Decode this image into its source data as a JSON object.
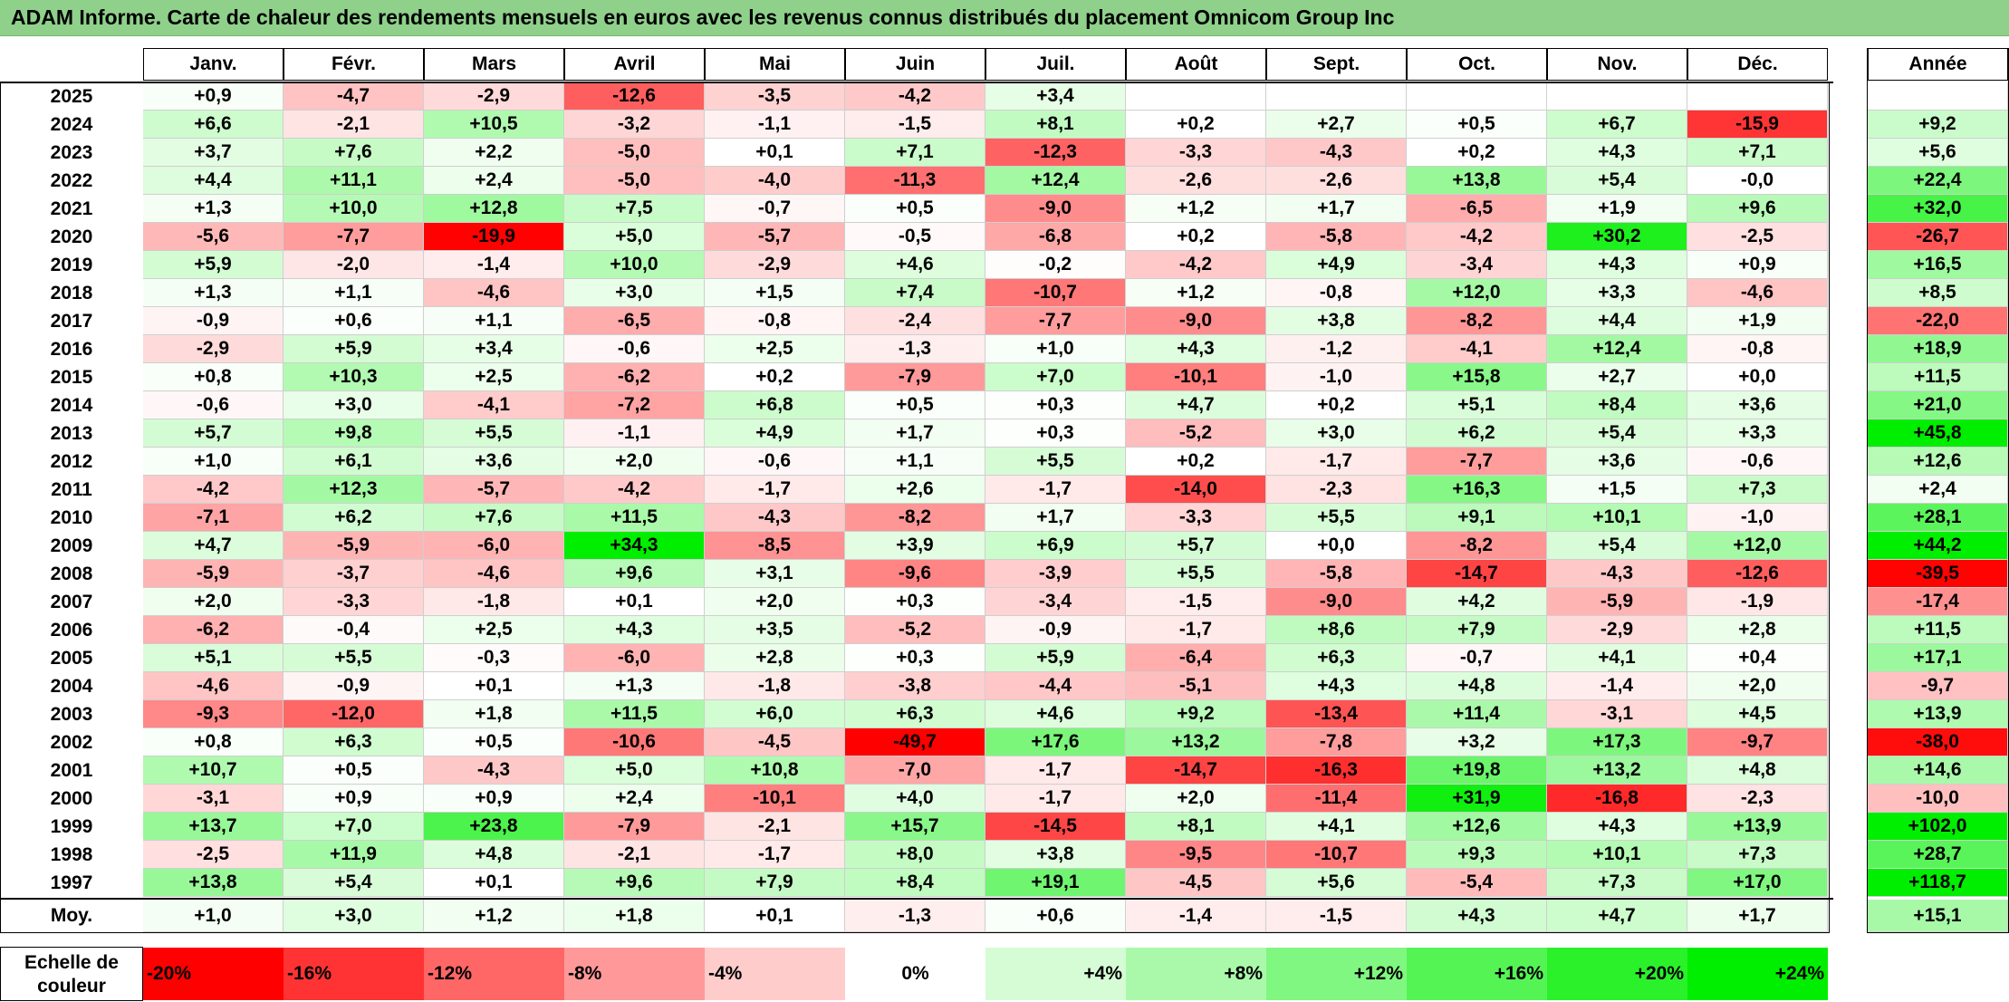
{
  "title": "ADAM Informe. Carte de chaleur des rendements mensuels en euros avec les revenus connus distribués du placement Omnicom Group Inc",
  "colors": {
    "title_bg": "#8fd18b",
    "neg_max": "#ff0000",
    "pos_max": "#00ee00",
    "neutral": "#ffffff"
  },
  "chart_data": {
    "type": "heatmap",
    "title": "ADAM Informe. Carte de chaleur des rendements mensuels en euros avec les revenus connus distribués du placement Omnicom Group Inc",
    "months": [
      "Janv.",
      "Févr.",
      "Mars",
      "Avril",
      "Mai",
      "Juin",
      "Juil.",
      "Août",
      "Sept.",
      "Oct.",
      "Nov.",
      "Déc."
    ],
    "annual_label": "Année",
    "avg_label": "Moy.",
    "rows": [
      {
        "year": "2025",
        "values": [
          "+0,9",
          "-4,7",
          "-2,9",
          "-12,6",
          "-3,5",
          "-4,2",
          "+3,4",
          "",
          "",
          "",
          "",
          ""
        ],
        "annual": ""
      },
      {
        "year": "2024",
        "values": [
          "+6,6",
          "-2,1",
          "+10,5",
          "-3,2",
          "-1,1",
          "-1,5",
          "+8,1",
          "+0,2",
          "+2,7",
          "+0,5",
          "+6,7",
          "-15,9"
        ],
        "annual": "+9,2"
      },
      {
        "year": "2023",
        "values": [
          "+3,7",
          "+7,6",
          "+2,2",
          "-5,0",
          "+0,1",
          "+7,1",
          "-12,3",
          "-3,3",
          "-4,3",
          "+0,2",
          "+4,3",
          "+7,1"
        ],
        "annual": "+5,6"
      },
      {
        "year": "2022",
        "values": [
          "+4,4",
          "+11,1",
          "+2,4",
          "-5,0",
          "-4,0",
          "-11,3",
          "+12,4",
          "-2,6",
          "-2,6",
          "+13,8",
          "+5,4",
          "-0,0"
        ],
        "annual": "+22,4"
      },
      {
        "year": "2021",
        "values": [
          "+1,3",
          "+10,0",
          "+12,8",
          "+7,5",
          "-0,7",
          "+0,5",
          "-9,0",
          "+1,2",
          "+1,7",
          "-6,5",
          "+1,9",
          "+9,6"
        ],
        "annual": "+32,0"
      },
      {
        "year": "2020",
        "values": [
          "-5,6",
          "-7,7",
          "-19,9",
          "+5,0",
          "-5,7",
          "-0,5",
          "-6,8",
          "+0,2",
          "-5,8",
          "-4,2",
          "+30,2",
          "-2,5"
        ],
        "annual": "-26,7"
      },
      {
        "year": "2019",
        "values": [
          "+5,9",
          "-2,0",
          "-1,4",
          "+10,0",
          "-2,9",
          "+4,6",
          "-0,2",
          "-4,2",
          "+4,9",
          "-3,4",
          "+4,3",
          "+0,9"
        ],
        "annual": "+16,5"
      },
      {
        "year": "2018",
        "values": [
          "+1,3",
          "+1,1",
          "-4,6",
          "+3,0",
          "+1,5",
          "+7,4",
          "-10,7",
          "+1,2",
          "-0,8",
          "+12,0",
          "+3,3",
          "-4,6"
        ],
        "annual": "+8,5"
      },
      {
        "year": "2017",
        "values": [
          "-0,9",
          "+0,6",
          "+1,1",
          "-6,5",
          "-0,8",
          "-2,4",
          "-7,7",
          "-9,0",
          "+3,8",
          "-8,2",
          "+4,4",
          "+1,9"
        ],
        "annual": "-22,0"
      },
      {
        "year": "2016",
        "values": [
          "-2,9",
          "+5,9",
          "+3,4",
          "-0,6",
          "+2,5",
          "-1,3",
          "+1,0",
          "+4,3",
          "-1,2",
          "-4,1",
          "+12,4",
          "-0,8"
        ],
        "annual": "+18,9"
      },
      {
        "year": "2015",
        "values": [
          "+0,8",
          "+10,3",
          "+2,5",
          "-6,2",
          "+0,2",
          "-7,9",
          "+7,0",
          "-10,1",
          "-1,0",
          "+15,8",
          "+2,7",
          "+0,0"
        ],
        "annual": "+11,5"
      },
      {
        "year": "2014",
        "values": [
          "-0,6",
          "+3,0",
          "-4,1",
          "-7,2",
          "+6,8",
          "+0,5",
          "+0,3",
          "+4,7",
          "+0,2",
          "+5,1",
          "+8,4",
          "+3,6"
        ],
        "annual": "+21,0"
      },
      {
        "year": "2013",
        "values": [
          "+5,7",
          "+9,8",
          "+5,5",
          "-1,1",
          "+4,9",
          "+1,7",
          "+0,3",
          "-5,2",
          "+3,0",
          "+6,2",
          "+5,4",
          "+3,3"
        ],
        "annual": "+45,8"
      },
      {
        "year": "2012",
        "values": [
          "+1,0",
          "+6,1",
          "+3,6",
          "+2,0",
          "-0,6",
          "+1,1",
          "+5,5",
          "+0,2",
          "-1,7",
          "-7,7",
          "+3,6",
          "-0,6"
        ],
        "annual": "+12,6"
      },
      {
        "year": "2011",
        "values": [
          "-4,2",
          "+12,3",
          "-5,7",
          "-4,2",
          "-1,7",
          "+2,6",
          "-1,7",
          "-14,0",
          "-2,3",
          "+16,3",
          "+1,5",
          "+7,3"
        ],
        "annual": "+2,4"
      },
      {
        "year": "2010",
        "values": [
          "-7,1",
          "+6,2",
          "+7,6",
          "+11,5",
          "-4,3",
          "-8,2",
          "+1,7",
          "-3,3",
          "+5,5",
          "+9,1",
          "+10,1",
          "-1,0"
        ],
        "annual": "+28,1"
      },
      {
        "year": "2009",
        "values": [
          "+4,7",
          "-5,9",
          "-6,0",
          "+34,3",
          "-8,5",
          "+3,9",
          "+6,9",
          "+5,7",
          "+0,0",
          "-8,2",
          "+5,4",
          "+12,0"
        ],
        "annual": "+44,2"
      },
      {
        "year": "2008",
        "values": [
          "-5,9",
          "-3,7",
          "-4,6",
          "+9,6",
          "+3,1",
          "-9,6",
          "-3,9",
          "+5,5",
          "-5,8",
          "-14,7",
          "-4,3",
          "-12,6"
        ],
        "annual": "-39,5"
      },
      {
        "year": "2007",
        "values": [
          "+2,0",
          "-3,3",
          "-1,8",
          "+0,1",
          "+2,0",
          "+0,3",
          "-3,4",
          "-1,5",
          "-9,0",
          "+4,2",
          "-5,9",
          "-1,9"
        ],
        "annual": "-17,4"
      },
      {
        "year": "2006",
        "values": [
          "-6,2",
          "-0,4",
          "+2,5",
          "+4,3",
          "+3,5",
          "-5,2",
          "-0,9",
          "-1,7",
          "+8,6",
          "+7,9",
          "-2,9",
          "+2,8"
        ],
        "annual": "+11,5"
      },
      {
        "year": "2005",
        "values": [
          "+5,1",
          "+5,5",
          "-0,3",
          "-6,0",
          "+2,8",
          "+0,3",
          "+5,9",
          "-6,4",
          "+6,3",
          "-0,7",
          "+4,1",
          "+0,4"
        ],
        "annual": "+17,1"
      },
      {
        "year": "2004",
        "values": [
          "-4,6",
          "-0,9",
          "+0,1",
          "+1,3",
          "-1,8",
          "-3,8",
          "-4,4",
          "-5,1",
          "+4,3",
          "+4,8",
          "-1,4",
          "+2,0"
        ],
        "annual": "-9,7"
      },
      {
        "year": "2003",
        "values": [
          "-9,3",
          "-12,0",
          "+1,8",
          "+11,5",
          "+6,0",
          "+6,3",
          "+4,6",
          "+9,2",
          "-13,4",
          "+11,4",
          "-3,1",
          "+4,5"
        ],
        "annual": "+13,9"
      },
      {
        "year": "2002",
        "values": [
          "+0,8",
          "+6,3",
          "+0,5",
          "-10,6",
          "-4,5",
          "-49,7",
          "+17,6",
          "+13,2",
          "-7,8",
          "+3,2",
          "+17,3",
          "-9,7"
        ],
        "annual": "-38,0"
      },
      {
        "year": "2001",
        "values": [
          "+10,7",
          "+0,5",
          "-4,3",
          "+5,0",
          "+10,8",
          "-7,0",
          "-1,7",
          "-14,7",
          "-16,3",
          "+19,8",
          "+13,2",
          "+4,8"
        ],
        "annual": "+14,6"
      },
      {
        "year": "2000",
        "values": [
          "-3,1",
          "+0,9",
          "+0,9",
          "+2,4",
          "-10,1",
          "+4,0",
          "-1,7",
          "+2,0",
          "-11,4",
          "+31,9",
          "-16,8",
          "-2,3"
        ],
        "annual": "-10,0"
      },
      {
        "year": "1999",
        "values": [
          "+13,7",
          "+7,0",
          "+23,8",
          "-7,9",
          "-2,1",
          "+15,7",
          "-14,5",
          "+8,1",
          "+4,1",
          "+12,6",
          "+4,3",
          "+13,9"
        ],
        "annual": "+102,0"
      },
      {
        "year": "1998",
        "values": [
          "-2,5",
          "+11,9",
          "+4,8",
          "-2,1",
          "-1,7",
          "+8,0",
          "+3,8",
          "-9,5",
          "-10,7",
          "+9,3",
          "+10,1",
          "+7,3"
        ],
        "annual": "+28,7"
      },
      {
        "year": "1997",
        "values": [
          "+13,8",
          "+5,4",
          "+0,1",
          "+9,6",
          "+7,9",
          "+8,4",
          "+19,1",
          "-4,5",
          "+5,6",
          "-5,4",
          "+7,3",
          "+17,0"
        ],
        "annual": "+118,7"
      }
    ],
    "averages": {
      "values": [
        "+1,0",
        "+3,0",
        "+1,2",
        "+1,8",
        "+0,1",
        "-1,3",
        "+0,6",
        "-1,4",
        "-1,5",
        "+4,3",
        "+4,7",
        "+1,7"
      ],
      "annual": "+15,1"
    },
    "scale": {
      "label_line1": "Echelle de",
      "label_line2": "couleur",
      "steps": [
        {
          "label": "-20%",
          "value": -20
        },
        {
          "label": "-16%",
          "value": -16
        },
        {
          "label": "-12%",
          "value": -12
        },
        {
          "label": "-8%",
          "value": -8
        },
        {
          "label": "-4%",
          "value": -4
        },
        {
          "label": "0%",
          "value": 0
        },
        {
          "label": "+4%",
          "value": 4
        },
        {
          "label": "+8%",
          "value": 8
        },
        {
          "label": "+12%",
          "value": 12
        },
        {
          "label": "+16%",
          "value": 16
        },
        {
          "label": "+20%",
          "value": 20
        },
        {
          "label": "+24%",
          "value": 24
        }
      ]
    }
  }
}
